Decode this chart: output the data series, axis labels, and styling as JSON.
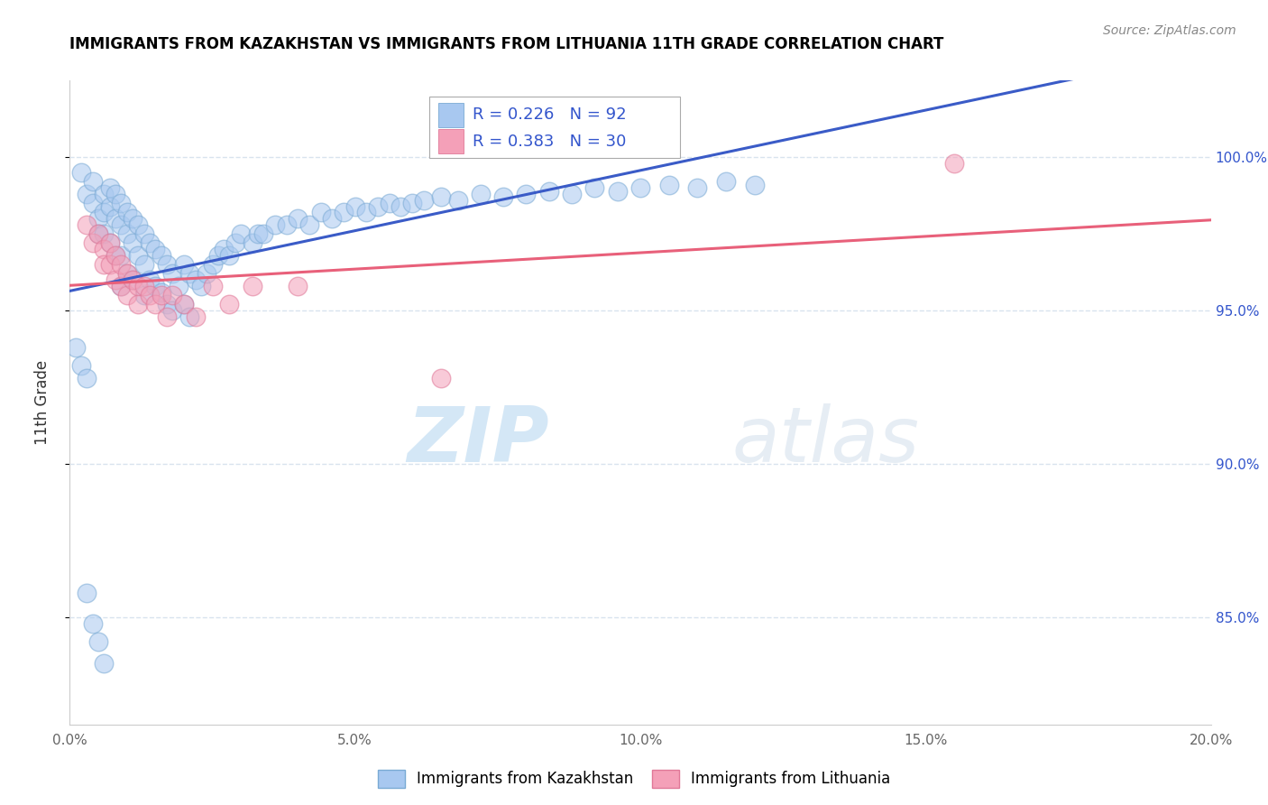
{
  "title": "IMMIGRANTS FROM KAZAKHSTAN VS IMMIGRANTS FROM LITHUANIA 11TH GRADE CORRELATION CHART",
  "source": "Source: ZipAtlas.com",
  "ylabel": "11th Grade",
  "xlim": [
    0.0,
    0.2
  ],
  "ylim": [
    0.815,
    1.025
  ],
  "yticks": [
    0.85,
    0.9,
    0.95,
    1.0
  ],
  "ytick_labels": [
    "85.0%",
    "90.0%",
    "95.0%",
    "100.0%"
  ],
  "xticks": [
    0.0,
    0.05,
    0.1,
    0.15,
    0.2
  ],
  "xtick_labels": [
    "0.0%",
    "5.0%",
    "10.0%",
    "15.0%",
    "20.0%"
  ],
  "legend_r_kaz": "R = 0.226",
  "legend_n_kaz": "N = 92",
  "legend_r_lith": "R = 0.383",
  "legend_n_lith": "N = 30",
  "kazakhstan_color": "#a8c8f0",
  "kazakhstan_edge": "#7aaad4",
  "lithuania_color": "#f4a0b8",
  "lithuania_edge": "#e07898",
  "kazakhstan_line_color": "#3a5bc7",
  "lithuania_line_color": "#e8607a",
  "watermark_zip": "ZIP",
  "watermark_atlas": "atlas",
  "title_fontsize": 12,
  "source_fontsize": 10,
  "tick_fontsize": 11,
  "ylabel_fontsize": 12,
  "scatter_size": 220,
  "scatter_alpha": 0.55,
  "grid_color": "#c8d8e8",
  "grid_alpha": 0.7,
  "kazakhstan_x": [
    0.002,
    0.003,
    0.004,
    0.004,
    0.005,
    0.005,
    0.006,
    0.006,
    0.006,
    0.007,
    0.007,
    0.007,
    0.008,
    0.008,
    0.008,
    0.009,
    0.009,
    0.009,
    0.009,
    0.01,
    0.01,
    0.01,
    0.011,
    0.011,
    0.011,
    0.012,
    0.012,
    0.013,
    0.013,
    0.013,
    0.014,
    0.014,
    0.015,
    0.015,
    0.016,
    0.016,
    0.017,
    0.017,
    0.018,
    0.018,
    0.019,
    0.02,
    0.02,
    0.021,
    0.021,
    0.022,
    0.023,
    0.024,
    0.025,
    0.026,
    0.027,
    0.028,
    0.029,
    0.03,
    0.032,
    0.033,
    0.034,
    0.036,
    0.038,
    0.04,
    0.042,
    0.044,
    0.046,
    0.048,
    0.05,
    0.052,
    0.054,
    0.056,
    0.058,
    0.06,
    0.062,
    0.065,
    0.068,
    0.072,
    0.076,
    0.08,
    0.084,
    0.088,
    0.092,
    0.096,
    0.1,
    0.105,
    0.11,
    0.115,
    0.12,
    0.001,
    0.002,
    0.003,
    0.003,
    0.004,
    0.005,
    0.006
  ],
  "kazakhstan_y": [
    0.995,
    0.988,
    0.992,
    0.985,
    0.98,
    0.975,
    0.988,
    0.982,
    0.975,
    0.99,
    0.984,
    0.972,
    0.988,
    0.98,
    0.968,
    0.985,
    0.978,
    0.968,
    0.958,
    0.982,
    0.975,
    0.962,
    0.98,
    0.972,
    0.96,
    0.978,
    0.968,
    0.975,
    0.965,
    0.955,
    0.972,
    0.96,
    0.97,
    0.958,
    0.968,
    0.956,
    0.965,
    0.952,
    0.962,
    0.95,
    0.958,
    0.965,
    0.952,
    0.962,
    0.948,
    0.96,
    0.958,
    0.962,
    0.965,
    0.968,
    0.97,
    0.968,
    0.972,
    0.975,
    0.972,
    0.975,
    0.975,
    0.978,
    0.978,
    0.98,
    0.978,
    0.982,
    0.98,
    0.982,
    0.984,
    0.982,
    0.984,
    0.985,
    0.984,
    0.985,
    0.986,
    0.987,
    0.986,
    0.988,
    0.987,
    0.988,
    0.989,
    0.988,
    0.99,
    0.989,
    0.99,
    0.991,
    0.99,
    0.992,
    0.991,
    0.938,
    0.932,
    0.928,
    0.858,
    0.848,
    0.842,
    0.835
  ],
  "lithuania_x": [
    0.003,
    0.004,
    0.005,
    0.006,
    0.006,
    0.007,
    0.007,
    0.008,
    0.008,
    0.009,
    0.009,
    0.01,
    0.01,
    0.011,
    0.012,
    0.012,
    0.013,
    0.014,
    0.015,
    0.016,
    0.017,
    0.018,
    0.02,
    0.022,
    0.025,
    0.028,
    0.032,
    0.04,
    0.065,
    0.155
  ],
  "lithuania_y": [
    0.978,
    0.972,
    0.975,
    0.97,
    0.965,
    0.972,
    0.965,
    0.968,
    0.96,
    0.965,
    0.958,
    0.962,
    0.955,
    0.96,
    0.958,
    0.952,
    0.958,
    0.955,
    0.952,
    0.955,
    0.948,
    0.955,
    0.952,
    0.948,
    0.958,
    0.952,
    0.958,
    0.958,
    0.928,
    0.998
  ]
}
